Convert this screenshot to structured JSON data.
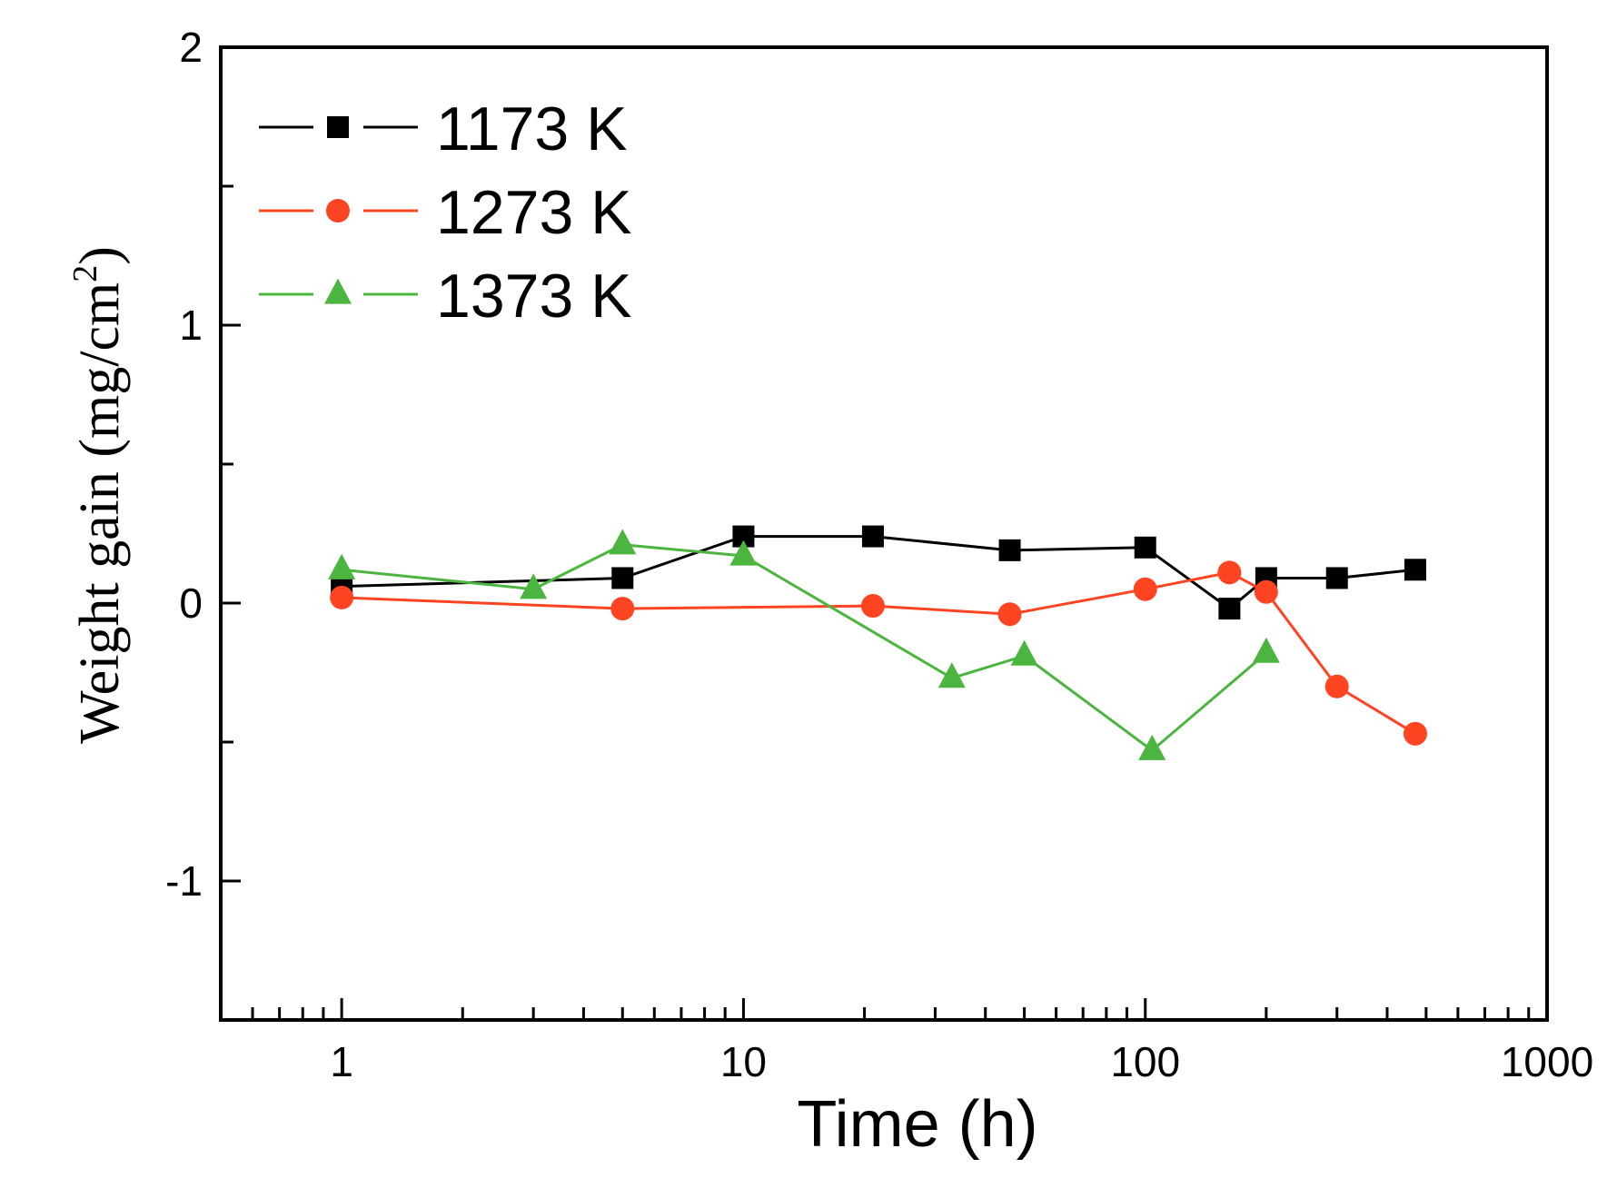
{
  "chart_data": {
    "type": "line",
    "xscale": "log",
    "xlabel": "Time (h)",
    "ylabel": "Weight gain (mg/cm",
    "ylabel_sup": "2",
    "ylabel_close": ")",
    "xlim": [
      0.5,
      1000
    ],
    "ylim": [
      -1.5,
      2
    ],
    "x_tick_labels": [
      {
        "value": 1,
        "label": "1"
      },
      {
        "value": 10,
        "label": "10"
      },
      {
        "value": 100,
        "label": "100"
      },
      {
        "value": 1000,
        "label": "1000"
      }
    ],
    "y_tick_labels": [
      {
        "value": -1,
        "label": "-1"
      },
      {
        "value": 0,
        "label": "0"
      },
      {
        "value": 1,
        "label": "1"
      },
      {
        "value": 2,
        "label": "2"
      }
    ],
    "legend_position": "top-left",
    "series": [
      {
        "name": "1173 K",
        "color": "#000000",
        "marker": "square",
        "x": [
          1,
          5,
          10,
          21,
          46,
          100,
          162,
          200,
          300,
          470
        ],
        "y": [
          0.06,
          0.09,
          0.24,
          0.24,
          0.19,
          0.2,
          -0.02,
          0.09,
          0.09,
          0.12
        ]
      },
      {
        "name": "1273 K",
        "color": "#ff4422",
        "marker": "circle",
        "x": [
          1,
          5,
          21,
          46,
          100,
          162,
          200,
          300,
          470
        ],
        "y": [
          0.02,
          -0.02,
          -0.01,
          -0.04,
          0.05,
          0.11,
          0.04,
          -0.3,
          -0.47
        ]
      },
      {
        "name": "1373 K",
        "color": "#4cb53f",
        "marker": "triangle",
        "x": [
          1,
          3,
          5,
          10,
          33,
          50,
          104,
          200
        ],
        "y": [
          0.12,
          0.05,
          0.21,
          0.17,
          -0.27,
          -0.19,
          -0.53,
          -0.18
        ]
      }
    ]
  }
}
